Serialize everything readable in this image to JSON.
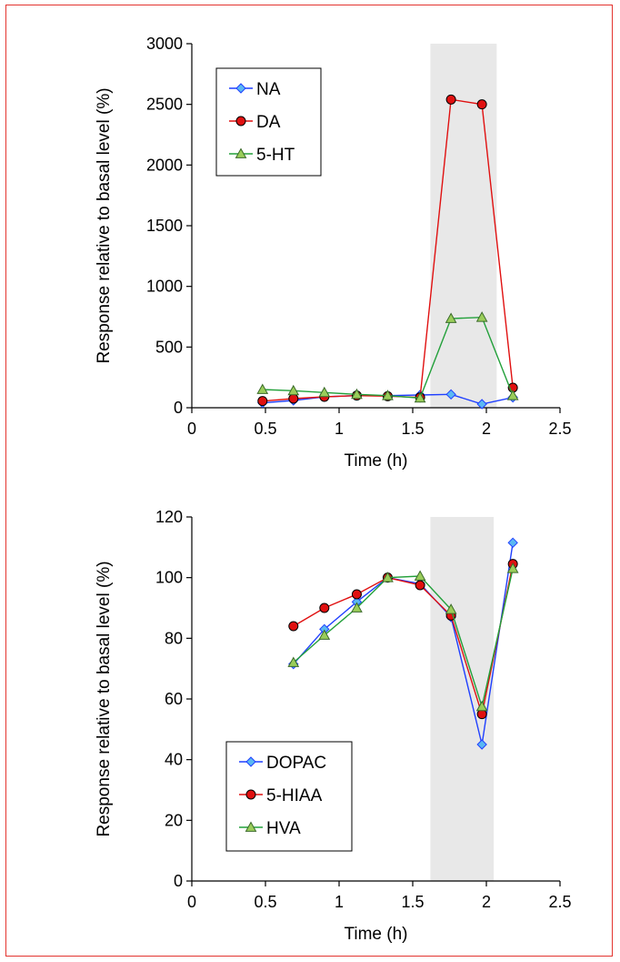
{
  "colors": {
    "frame": "#e3342f",
    "shade": "#e8e8e8",
    "blue_line": "#1f3fff",
    "blue_marker": "#5bb8f2",
    "red_line": "#e01010",
    "red_marker": "#e01010",
    "green_line": "#22a03a",
    "green_marker": "#9acd5a"
  },
  "chart_data": [
    {
      "type": "line",
      "xlabel": "Time (h)",
      "ylabel": "Response relative to basal level (%)",
      "xlim": [
        0,
        2.5
      ],
      "ylim": [
        0,
        3000
      ],
      "xticks": [
        "0",
        "0.5",
        "1",
        "1.5",
        "2",
        "2.5"
      ],
      "yticks": [
        "0",
        "500",
        "1000",
        "1500",
        "2000",
        "2500",
        "3000"
      ],
      "shaded_region": [
        1.62,
        2.07
      ],
      "legend_position": "top-left",
      "series": [
        {
          "name": "NA",
          "marker": "diamond",
          "line_color": "#1f3fff",
          "marker_color": "#5bb8f2",
          "x": [
            0.48,
            0.69,
            0.9,
            1.12,
            1.33,
            1.55,
            1.76,
            1.97,
            2.18
          ],
          "y": [
            40,
            60,
            90,
            100,
            100,
            105,
            110,
            30,
            85
          ]
        },
        {
          "name": "DA",
          "marker": "circle",
          "line_color": "#e01010",
          "marker_color": "#e01010",
          "x": [
            0.48,
            0.69,
            0.9,
            1.12,
            1.33,
            1.55,
            1.76,
            1.97,
            2.18
          ],
          "y": [
            55,
            75,
            90,
            100,
            95,
            85,
            2540,
            2500,
            165
          ]
        },
        {
          "name": "5-HT",
          "marker": "triangle",
          "line_color": "#22a03a",
          "marker_color": "#9acd5a",
          "x": [
            0.48,
            0.69,
            0.9,
            1.12,
            1.33,
            1.55,
            1.76,
            1.97,
            2.18
          ],
          "y": [
            150,
            140,
            125,
            110,
            100,
            80,
            735,
            745,
            100
          ]
        }
      ]
    },
    {
      "type": "line",
      "xlabel": "Time (h)",
      "ylabel": "Response relative to basal level (%)",
      "xlim": [
        0,
        2.5
      ],
      "ylim": [
        0,
        120
      ],
      "xticks": [
        "0",
        "0.5",
        "1",
        "1.5",
        "2",
        "2.5"
      ],
      "yticks": [
        "0",
        "20",
        "40",
        "60",
        "80",
        "100",
        "120"
      ],
      "shaded_region": [
        1.62,
        2.05
      ],
      "legend_position": "bottom-left",
      "series": [
        {
          "name": "DOPAC",
          "marker": "diamond",
          "line_color": "#1f3fff",
          "marker_color": "#5bb8f2",
          "x": [
            0.69,
            0.9,
            1.12,
            1.33,
            1.55,
            1.76,
            1.97,
            2.18
          ],
          "y": [
            71.5,
            83,
            92,
            100,
            98,
            87,
            45,
            111.5
          ]
        },
        {
          "name": "5-HIAA",
          "marker": "circle",
          "line_color": "#e01010",
          "marker_color": "#e01010",
          "x": [
            0.69,
            0.9,
            1.12,
            1.33,
            1.55,
            1.76,
            1.97,
            2.18
          ],
          "y": [
            84,
            90,
            94.5,
            100,
            97.5,
            87.5,
            55,
            104.5
          ]
        },
        {
          "name": "HVA",
          "marker": "triangle",
          "line_color": "#22a03a",
          "marker_color": "#9acd5a",
          "x": [
            0.69,
            0.9,
            1.12,
            1.33,
            1.55,
            1.76,
            1.97,
            2.18
          ],
          "y": [
            72,
            81,
            90,
            100,
            100.5,
            89.5,
            57.5,
            103
          ]
        }
      ]
    }
  ]
}
